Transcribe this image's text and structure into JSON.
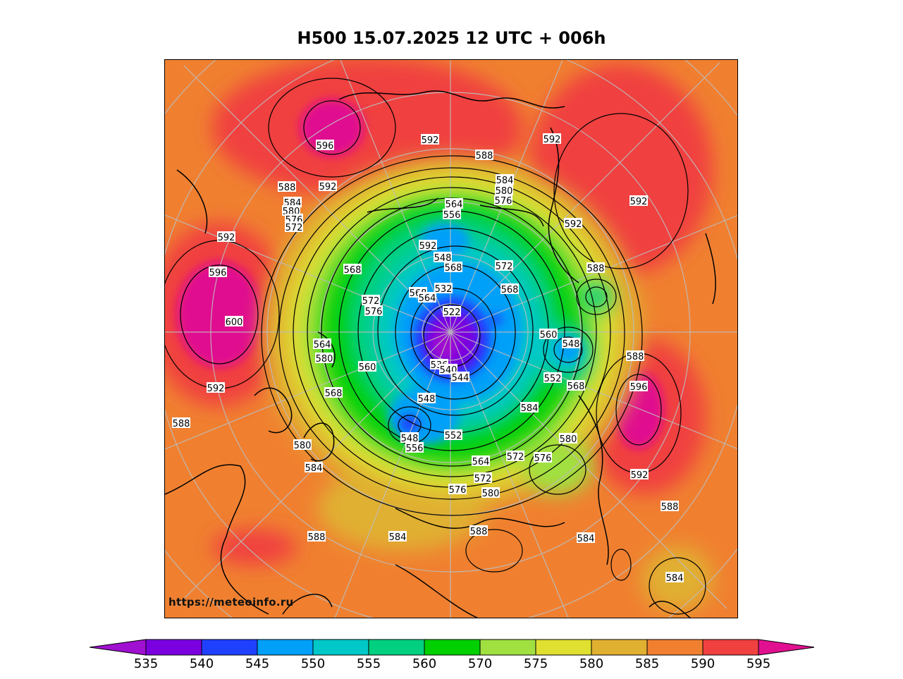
{
  "title": "H500  15.07.2025 12 UTC + 006h",
  "credit": "https://meteoinfo.ru",
  "legend": {
    "bounds": [
      "535",
      "540",
      "545",
      "550",
      "555",
      "560",
      "570",
      "575",
      "580",
      "585",
      "590",
      "595"
    ],
    "colors": [
      "#a010d0",
      "#7a00e0",
      "#2040ff",
      "#00a0f8",
      "#00c8c8",
      "#00d080",
      "#00d000",
      "#a0e040",
      "#e0e030",
      "#e0b030",
      "#f08030",
      "#f04040",
      "#e01090"
    ]
  },
  "contour_labels": [
    "596",
    "592",
    "592",
    "588",
    "592",
    "588",
    "592",
    "584",
    "580",
    "576",
    "584",
    "580",
    "576",
    "572",
    "592",
    "564",
    "556",
    "592",
    "592",
    "588",
    "596",
    "568",
    "572",
    "576",
    "568",
    "564",
    "548",
    "568",
    "572",
    "568",
    "532",
    "522",
    "600",
    "560",
    "564",
    "580",
    "560",
    "548",
    "536",
    "540",
    "544",
    "568",
    "552",
    "568",
    "588",
    "596",
    "592",
    "548",
    "548",
    "552",
    "556",
    "580",
    "564",
    "572",
    "576",
    "580",
    "584",
    "572",
    "580",
    "576",
    "588",
    "584",
    "588",
    "584",
    "588",
    "592",
    "588",
    "584",
    "584"
  ]
}
